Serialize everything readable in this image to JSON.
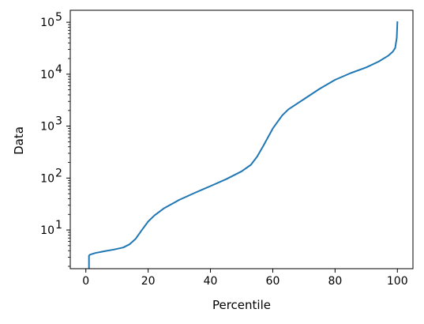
{
  "chart_data": {
    "type": "line",
    "xlabel": "Percentile",
    "ylabel": "Data",
    "y_scale": "log",
    "xlim": [
      -5,
      105
    ],
    "ylim": [
      1.8,
      170000
    ],
    "x_ticks": [
      0,
      20,
      40,
      60,
      80,
      100
    ],
    "x_tick_labels": [
      "0",
      "20",
      "40",
      "60",
      "80",
      "100"
    ],
    "y_major_ticks": [
      10,
      100,
      1000,
      10000,
      100000
    ],
    "y_tick_labels": [
      {
        "base": "10",
        "exp": "1"
      },
      {
        "base": "10",
        "exp": "2"
      },
      {
        "base": "10",
        "exp": "3"
      },
      {
        "base": "10",
        "exp": "4"
      },
      {
        "base": "10",
        "exp": "5"
      }
    ],
    "grid": false,
    "colors": {
      "line": "#1f77b4",
      "axes": "#000000"
    },
    "series": [
      {
        "x": [
          1.0,
          1.0,
          1.3,
          3,
          6,
          9,
          12,
          14,
          16,
          18,
          20,
          22,
          25,
          30,
          35,
          40,
          45,
          50,
          53,
          55,
          57,
          60,
          63,
          65,
          70,
          75,
          80,
          85,
          90,
          94,
          97,
          98.5,
          99.3,
          99.8,
          100
        ],
        "y": [
          1.9,
          3.2,
          3.35,
          3.6,
          3.9,
          4.2,
          4.6,
          5.3,
          6.8,
          10,
          14.5,
          19,
          26,
          38,
          52,
          70,
          95,
          135,
          180,
          260,
          420,
          900,
          1600,
          2100,
          3300,
          5200,
          7800,
          10500,
          13500,
          17500,
          22500,
          27000,
          32000,
          50000,
          100000
        ]
      }
    ]
  }
}
